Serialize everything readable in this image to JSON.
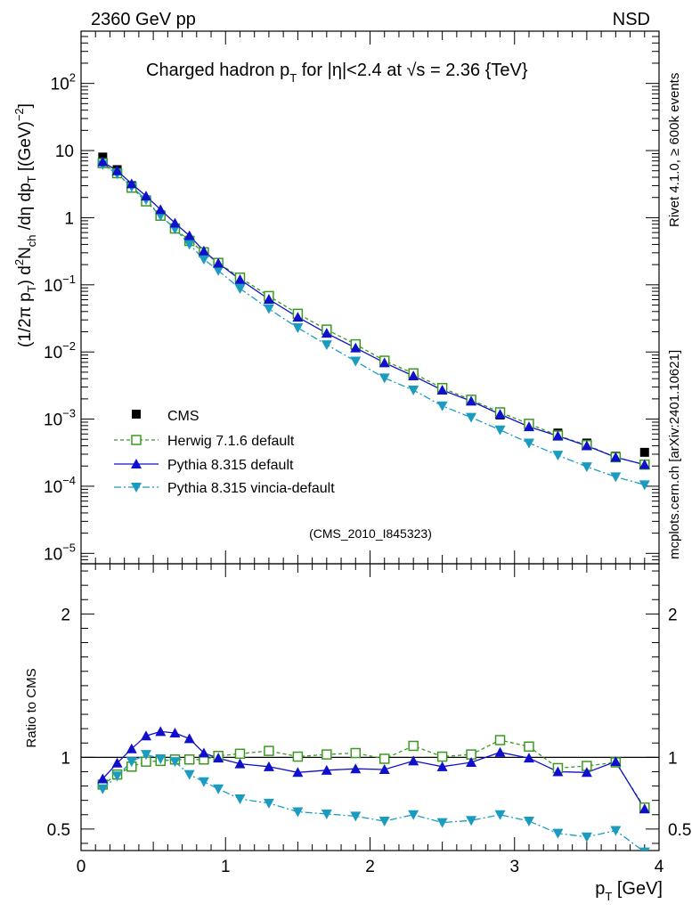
{
  "header": {
    "left": "2360 GeV pp",
    "right": "NSD"
  },
  "side_labels": {
    "rivet": "Rivet 4.1.0, ≥ 600k events",
    "mcplots": "mcplots.cern.ch [arXiv:2401.10621]"
  },
  "analysis_tag": "(CMS_2010_I845323)",
  "colors": {
    "cms": "#000000",
    "herwig": "#3a9a20",
    "pythia": "#1010cc",
    "vincia": "#1a9cc0"
  },
  "chart_data": [
    {
      "id": "main",
      "type": "scatter",
      "title": "Charged hadron p_T for |η|<2.4 at √s = 2.36 {TeV}",
      "title_parts": {
        "pre": "Charged hadron p",
        "sub": "T",
        "mid": " for |η|<2.4 at ",
        "sqrt": "√s",
        "post": " = 2.36 {TeV}"
      },
      "ylabel": "(1/2π p_T) d²N_ch/dη dp_T [(GeV)⁻²]",
      "yscale": "log",
      "xlim": [
        0,
        4
      ],
      "ylim": [
        7e-06,
        600
      ],
      "y_ticks": [
        {
          "v": 1e-05,
          "base": "10",
          "exp": "−5"
        },
        {
          "v": 0.0001,
          "base": "10",
          "exp": "−4"
        },
        {
          "v": 0.001,
          "base": "10",
          "exp": "−3"
        },
        {
          "v": 0.01,
          "base": "10",
          "exp": "−2"
        },
        {
          "v": 0.1,
          "base": "10",
          "exp": "−1"
        },
        {
          "v": 1,
          "base": "1",
          "exp": ""
        },
        {
          "v": 10,
          "base": "10",
          "exp": ""
        },
        {
          "v": 100,
          "base": "10",
          "exp": "2"
        }
      ],
      "x": [
        0.15,
        0.25,
        0.35,
        0.45,
        0.55,
        0.65,
        0.75,
        0.85,
        0.95,
        1.1,
        1.3,
        1.5,
        1.7,
        1.9,
        2.1,
        2.3,
        2.5,
        2.7,
        2.9,
        3.1,
        3.3,
        3.5,
        3.7,
        3.9
      ],
      "series": [
        {
          "name": "CMS",
          "style": "cms",
          "values": [
            8.0,
            5.2,
            3.0,
            1.8,
            1.1,
            0.7,
            0.46,
            0.31,
            0.21,
            0.125,
            0.065,
            0.037,
            0.021,
            0.0125,
            0.0075,
            0.0045,
            0.0029,
            0.0019,
            0.00115,
            0.0008,
            0.00062,
            0.00044,
            0.00028,
            0.00032
          ]
        },
        {
          "name": "Herwig 7.1.6 default",
          "style": "herwig",
          "values": [
            6.5,
            4.6,
            2.8,
            1.75,
            1.07,
            0.69,
            0.45,
            0.305,
            0.212,
            0.128,
            0.068,
            0.037,
            0.0215,
            0.013,
            0.0074,
            0.0048,
            0.0029,
            0.00194,
            0.00126,
            0.00085,
            0.00057,
            0.00041,
            0.00027,
            0.00021
          ]
        },
        {
          "name": "Pythia 8.315 default",
          "style": "pythia",
          "values": [
            6.8,
            5.0,
            3.2,
            2.1,
            1.32,
            0.83,
            0.54,
            0.32,
            0.21,
            0.12,
            0.061,
            0.033,
            0.019,
            0.0115,
            0.0069,
            0.0044,
            0.0027,
            0.00185,
            0.00118,
            0.00077,
            0.00056,
            0.0004,
            0.00027,
            0.00021
          ]
        },
        {
          "name": "Pythia 8.315 vincia-default",
          "style": "vincia",
          "values": [
            6.2,
            4.5,
            2.9,
            1.85,
            1.07,
            0.68,
            0.4,
            0.24,
            0.163,
            0.088,
            0.044,
            0.0229,
            0.0128,
            0.0073,
            0.0041,
            0.0027,
            0.00157,
            0.00106,
            0.00069,
            0.00044,
            0.00029,
            0.000195,
            0.000138,
            0.000105
          ]
        }
      ]
    },
    {
      "id": "ratio",
      "type": "line",
      "ylabel": "Ratio to CMS",
      "xlabel": "p_T [GeV]",
      "xlabel_parts": {
        "pre": "p",
        "sub": "T",
        "post": " [GeV]"
      },
      "xlim": [
        0,
        4
      ],
      "ylim": [
        0.35,
        2.35
      ],
      "x_ticks": [
        "0",
        "1",
        "2",
        "3",
        "4"
      ],
      "y_ticks": [
        {
          "v": 0.5,
          "label": "0.5"
        },
        {
          "v": 1,
          "label": "1"
        },
        {
          "v": 2,
          "label": "2"
        }
      ],
      "x": [
        0.15,
        0.25,
        0.35,
        0.45,
        0.55,
        0.65,
        0.75,
        0.85,
        0.95,
        1.1,
        1.3,
        1.5,
        1.7,
        1.9,
        2.1,
        2.3,
        2.5,
        2.7,
        2.9,
        3.1,
        3.3,
        3.5,
        3.7,
        3.9
      ],
      "series": [
        {
          "name": "Herwig 7.1.6 default",
          "style": "herwig",
          "values": [
            0.81,
            0.88,
            0.935,
            0.97,
            0.975,
            0.985,
            0.985,
            0.985,
            1.01,
            1.025,
            1.045,
            1.005,
            1.02,
            1.03,
            0.99,
            1.08,
            1.005,
            1.02,
            1.12,
            1.075,
            0.925,
            0.94,
            0.965,
            0.65
          ]
        },
        {
          "name": "Pythia 8.315 default",
          "style": "pythia",
          "values": [
            0.85,
            0.96,
            1.06,
            1.15,
            1.18,
            1.17,
            1.13,
            1.03,
            0.995,
            0.955,
            0.935,
            0.895,
            0.91,
            0.92,
            0.915,
            0.975,
            0.935,
            0.965,
            1.035,
            0.995,
            0.9,
            0.895,
            0.97,
            0.64
          ]
        },
        {
          "name": "Pythia 8.315 vincia-default",
          "style": "vincia",
          "values": [
            0.78,
            0.87,
            0.97,
            1.02,
            0.99,
            0.97,
            0.88,
            0.83,
            0.78,
            0.71,
            0.68,
            0.62,
            0.605,
            0.59,
            0.555,
            0.6,
            0.545,
            0.56,
            0.6,
            0.555,
            0.47,
            0.445,
            0.49,
            0.34
          ]
        }
      ],
      "reference_line": 1
    }
  ]
}
